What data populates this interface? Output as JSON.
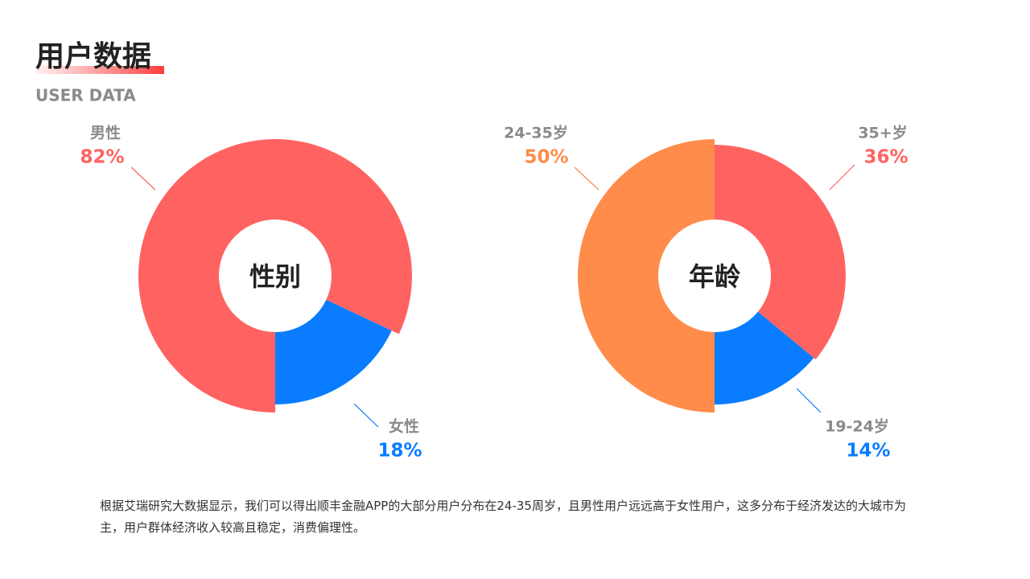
{
  "header": {
    "title": "用户数据",
    "subtitle": "USER DATA"
  },
  "chart_data": [
    {
      "type": "pie",
      "center_label": "性别",
      "categories": [
        "男性",
        "女性"
      ],
      "values": [
        82,
        18
      ],
      "value_labels": [
        "82%",
        "18%"
      ],
      "colors": [
        "#ff6361",
        "#0a7cff"
      ]
    },
    {
      "type": "pie",
      "center_label": "年龄",
      "categories": [
        "24-35岁",
        "35+岁",
        "19-24岁"
      ],
      "values": [
        50,
        36,
        14
      ],
      "value_labels": [
        "50%",
        "36%",
        "14%"
      ],
      "colors": [
        "#ff8c4a",
        "#ff6361",
        "#0a7cff"
      ]
    }
  ],
  "body_text": "根据艾瑞研究大数据显示，我们可以得出顺丰金融APP的大部分用户分布在24-35周岁，且男性用户远远高于女性用户，这多分布于经济发达的大城市为主，用户群体经济收入较高且稳定，消费偏理性。"
}
